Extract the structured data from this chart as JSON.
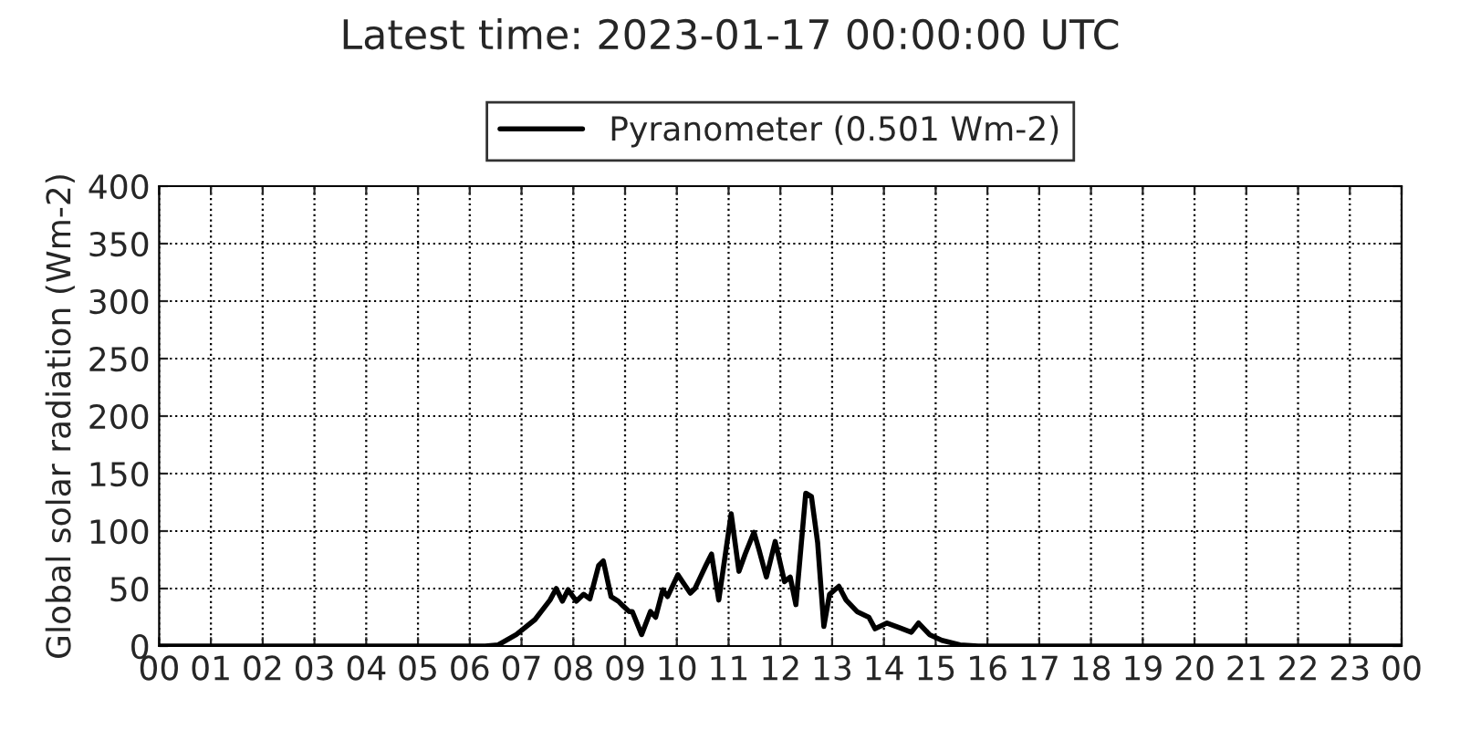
{
  "chart_data": {
    "type": "line",
    "title": "Latest time: 2023-01-17 00:00:00 UTC",
    "ylabel": "Global solar radiation (Wm-2)",
    "x": [
      0,
      6.3,
      6.55,
      6.9,
      7.26,
      7.55,
      7.67,
      7.79,
      7.9,
      8.06,
      8.2,
      8.32,
      8.49,
      8.58,
      8.73,
      8.87,
      8.96,
      9.08,
      9.14,
      9.32,
      9.49,
      9.59,
      9.73,
      9.82,
      10.02,
      10.14,
      10.26,
      10.35,
      10.56,
      10.67,
      10.81,
      11.05,
      11.2,
      11.32,
      11.49,
      11.58,
      11.73,
      11.9,
      12.08,
      12.19,
      12.3,
      12.49,
      12.6,
      12.72,
      12.84,
      12.95,
      13.13,
      13.27,
      13.48,
      13.71,
      13.83,
      14.06,
      14.3,
      14.53,
      14.67,
      14.88,
      15.12,
      15.47,
      15.82,
      24
    ],
    "series": [
      {
        "name": "Pyranometer (0.501 Wm-2)",
        "color": "#000000",
        "values": [
          0,
          0,
          1,
          10,
          23,
          40,
          50,
          39,
          49,
          39,
          45,
          41,
          70,
          74,
          43,
          39,
          35,
          30,
          30,
          10,
          30,
          25,
          49,
          43,
          62,
          54,
          46,
          50,
          70,
          80,
          40,
          115,
          65,
          80,
          99,
          85,
          60,
          91,
          56,
          60,
          36,
          133,
          130,
          90,
          17,
          45,
          52,
          40,
          30,
          25,
          15,
          20,
          16,
          12,
          20,
          10,
          5,
          1,
          0,
          0
        ]
      }
    ],
    "xlim": [
      0,
      24
    ],
    "xticks": [
      {
        "value": 0,
        "label": "00"
      },
      {
        "value": 1,
        "label": "01"
      },
      {
        "value": 2,
        "label": "02"
      },
      {
        "value": 3,
        "label": "03"
      },
      {
        "value": 4,
        "label": "04"
      },
      {
        "value": 5,
        "label": "05"
      },
      {
        "value": 6,
        "label": "06"
      },
      {
        "value": 7,
        "label": "07"
      },
      {
        "value": 8,
        "label": "08"
      },
      {
        "value": 9,
        "label": "09"
      },
      {
        "value": 10,
        "label": "10"
      },
      {
        "value": 11,
        "label": "11"
      },
      {
        "value": 12,
        "label": "12"
      },
      {
        "value": 13,
        "label": "13"
      },
      {
        "value": 14,
        "label": "14"
      },
      {
        "value": 15,
        "label": "15"
      },
      {
        "value": 16,
        "label": "16"
      },
      {
        "value": 17,
        "label": "17"
      },
      {
        "value": 18,
        "label": "18"
      },
      {
        "value": 19,
        "label": "19"
      },
      {
        "value": 20,
        "label": "20"
      },
      {
        "value": 21,
        "label": "21"
      },
      {
        "value": 22,
        "label": "22"
      },
      {
        "value": 23,
        "label": "23"
      },
      {
        "value": 24,
        "label": "00"
      }
    ],
    "ylim": [
      0,
      400
    ],
    "yticks": [
      0,
      50,
      100,
      150,
      200,
      250,
      300,
      350,
      400
    ],
    "grid": true,
    "legend": "top",
    "line_style": "solid"
  }
}
